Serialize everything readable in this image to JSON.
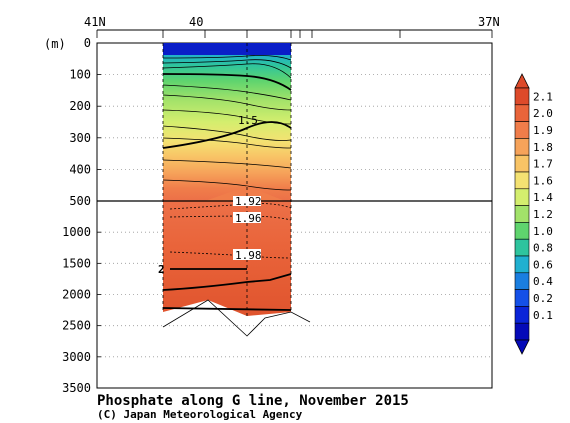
{
  "chart_data": {
    "type": "contour-section",
    "title": "Phosphate along G line, November 2015",
    "credit": "(C) Japan Meteorological Agency",
    "y_unit": "(m)",
    "x_top_labels": [
      "41N",
      "40",
      "37N"
    ],
    "y_ticks": [
      "0",
      "100",
      "200",
      "300",
      "400",
      "500",
      "1000",
      "1500",
      "2000",
      "2500",
      "3000",
      "3500"
    ],
    "y_upper_range": [
      0,
      500
    ],
    "y_lower_range": [
      500,
      3500
    ],
    "contour_labels": [
      "1.5",
      "1.92",
      "1.96",
      "1.98",
      "2"
    ],
    "colorbar_levels": [
      "2.1",
      "2.0",
      "1.9",
      "1.8",
      "1.7",
      "1.6",
      "1.4",
      "1.2",
      "1.0",
      "0.8",
      "0.6",
      "0.4",
      "0.2",
      "0.1"
    ],
    "colorbar_colors": [
      "#dd4a2a",
      "#e9643a",
      "#f07d4a",
      "#f6a35a",
      "#f8c466",
      "#f4e272",
      "#d4ee6e",
      "#a2e26a",
      "#5fd46e",
      "#2ec49e",
      "#20b0d0",
      "#1a7ee0",
      "#1450e8",
      "#0a24d8",
      "#050ab8"
    ]
  }
}
